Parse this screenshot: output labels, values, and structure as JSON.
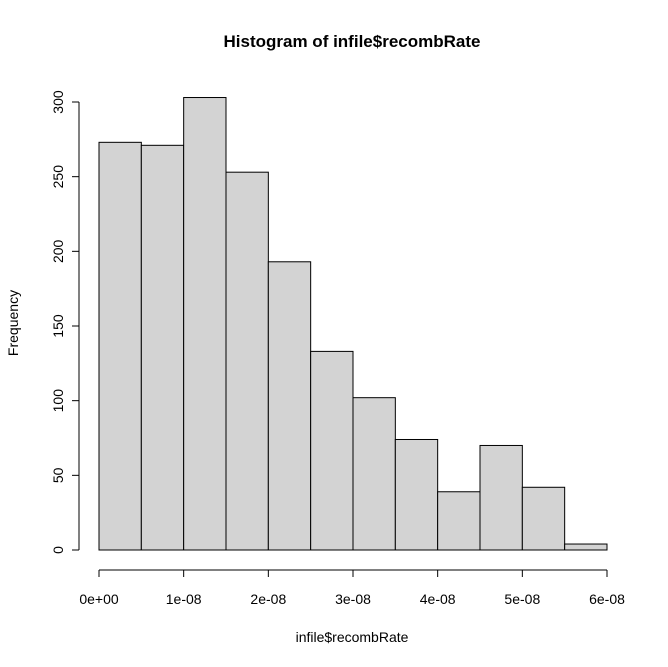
{
  "chart_data": {
    "type": "bar",
    "title": "Histogram of infile$recombRate",
    "xlabel": "infile$recombRate",
    "ylabel": "Frequency",
    "bin_edges": [
      0,
      5e-09,
      1e-08,
      1.5e-08,
      2e-08,
      2.5e-08,
      3e-08,
      3.5e-08,
      4e-08,
      4.5e-08,
      5e-08,
      5.5e-08,
      6e-08
    ],
    "values": [
      273,
      271,
      303,
      253,
      193,
      133,
      102,
      74,
      39,
      70,
      42,
      4
    ],
    "xlim": [
      0,
      6e-08
    ],
    "ylim": [
      0,
      300
    ],
    "x_ticks": [
      0,
      1e-08,
      2e-08,
      3e-08,
      4e-08,
      5e-08,
      6e-08
    ],
    "x_tick_labels": [
      "0e+00",
      "1e-08",
      "2e-08",
      "3e-08",
      "4e-08",
      "5e-08",
      "6e-08"
    ],
    "y_ticks": [
      0,
      50,
      100,
      150,
      200,
      250,
      300
    ],
    "y_tick_labels": [
      "0",
      "50",
      "100",
      "150",
      "200",
      "250",
      "300"
    ],
    "bar_fill": "#d3d3d3",
    "bar_stroke": "#000000",
    "grid": false
  }
}
